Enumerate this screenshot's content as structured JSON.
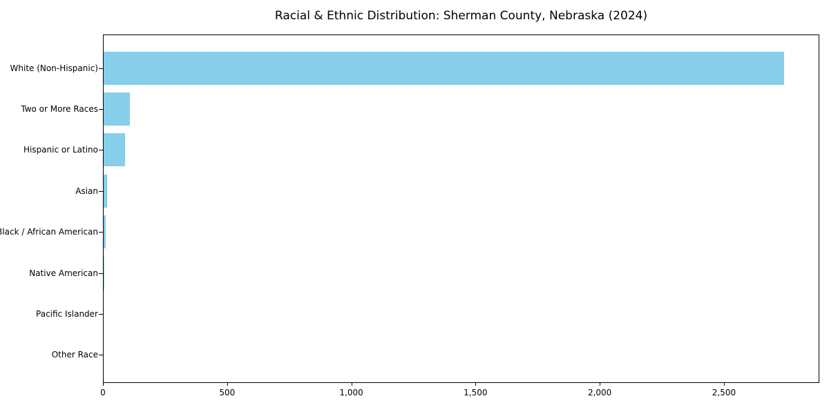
{
  "chart_data": {
    "type": "bar",
    "orientation": "horizontal",
    "title": "Racial & Ethnic Distribution: Sherman County, Nebraska (2024)",
    "categories": [
      "White (Non-Hispanic)",
      "Two or More Races",
      "Hispanic or Latino",
      "Asian",
      "Black / African American",
      "Native American",
      "Pacific Islander",
      "Other Race"
    ],
    "values": [
      2746,
      106,
      85,
      13,
      9,
      2,
      0,
      0
    ],
    "xlabel": "",
    "ylabel": "",
    "xlim": [
      0,
      2884
    ],
    "xticks": [
      0,
      500,
      1000,
      1500,
      2000,
      2500
    ],
    "xtick_labels": [
      "0",
      "500",
      "1,000",
      "1,500",
      "2,000",
      "2,500"
    ],
    "grid": false,
    "legend": null,
    "bar_color": "#87ceeb",
    "axis_color": "#000000",
    "background_color": "#ffffff"
  }
}
